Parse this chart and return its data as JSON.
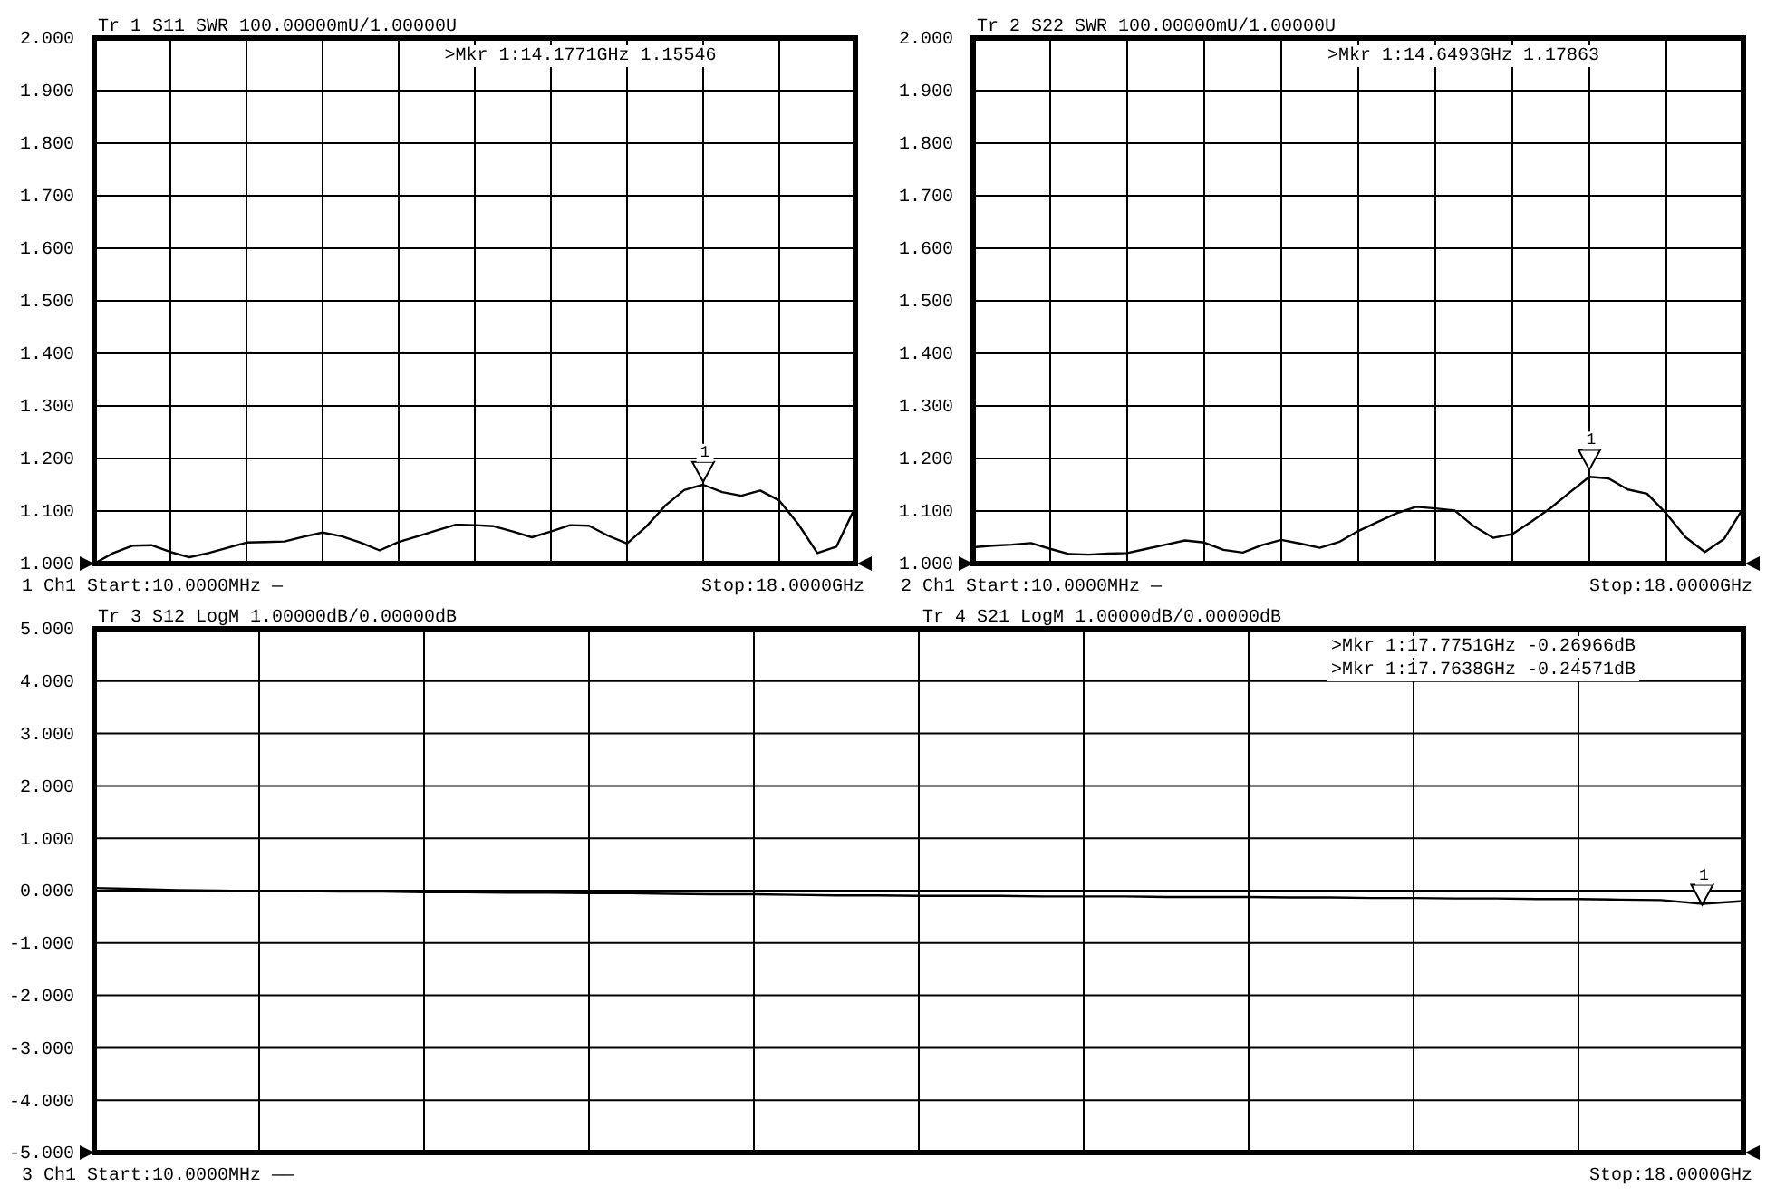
{
  "chart_data": [
    {
      "type": "line",
      "title": "Tr 1  S11 SWR 100.00000mU/1.00000U",
      "categories": [
        null,
        null,
        null,
        null,
        null,
        null,
        null,
        null,
        null,
        null,
        null,
        null,
        null,
        null,
        null,
        null,
        null,
        null,
        null,
        null,
        null,
        null,
        null,
        null,
        null,
        null,
        null,
        null,
        null,
        null,
        null,
        null,
        null,
        null,
        null,
        null,
        null,
        null,
        null,
        null,
        null
      ],
      "ylim": [
        1,
        2
      ],
      "yticks": [
        {
          "value": 1,
          "label": "1.000"
        },
        {
          "value": 1.1,
          "label": "1.100"
        },
        {
          "value": 1.2,
          "label": "1.200"
        },
        {
          "value": 1.3,
          "label": "1.300"
        },
        {
          "value": 1.4,
          "label": "1.400"
        },
        {
          "value": 1.5,
          "label": "1.500"
        },
        {
          "value": 1.6,
          "label": "1.600"
        },
        {
          "value": 1.7,
          "label": "1.700"
        },
        {
          "value": 1.8,
          "label": "1.800"
        },
        {
          "value": 1.9,
          "label": "1.900"
        },
        {
          "value": 2,
          "label": "2.000"
        }
      ],
      "grid": true,
      "series": [
        {
          "color": "#000000",
          "values": [
            1.0,
            1.02,
            1.034,
            1.035,
            1.022,
            1.012,
            1.02,
            1.03,
            1.04,
            1.041,
            1.042,
            1.051,
            1.059,
            1.052,
            1.04,
            1.025,
            1.041,
            1.052,
            1.063,
            1.074,
            1.073,
            1.071,
            1.061,
            1.05,
            1.061,
            1.073,
            1.072,
            1.053,
            1.038,
            1.07,
            1.11,
            1.14,
            1.15,
            1.136,
            1.129,
            1.139,
            1.12,
            1.075,
            1.02,
            1.032,
            1.108
          ]
        }
      ],
      "annotations": [
        ">Mkr 1:14.1771GHz 1.15546",
        {
          "text": "1",
          "y": 1.15546
        },
        "1  Ch1  Start:10.0000MHz —",
        "Stop:18.0000GHz"
      ]
    },
    {
      "type": "line",
      "title": "Tr 2  S22 SWR 100.00000mU/1.00000U",
      "categories": [
        null,
        null,
        null,
        null,
        null,
        null,
        null,
        null,
        null,
        null,
        null,
        null,
        null,
        null,
        null,
        null,
        null,
        null,
        null,
        null,
        null,
        null,
        null,
        null,
        null,
        null,
        null,
        null,
        null,
        null,
        null,
        null,
        null,
        null,
        null,
        null,
        null,
        null,
        null,
        null,
        null
      ],
      "ylim": [
        1,
        2
      ],
      "yticks": [
        {
          "value": 1,
          "label": "1.000"
        },
        {
          "value": 1.1,
          "label": "1.100"
        },
        {
          "value": 1.2,
          "label": "1.200"
        },
        {
          "value": 1.3,
          "label": "1.300"
        },
        {
          "value": 1.4,
          "label": "1.400"
        },
        {
          "value": 1.5,
          "label": "1.500"
        },
        {
          "value": 1.6,
          "label": "1.600"
        },
        {
          "value": 1.7,
          "label": "1.700"
        },
        {
          "value": 1.8,
          "label": "1.800"
        },
        {
          "value": 1.9,
          "label": "1.900"
        },
        {
          "value": 2,
          "label": "2.000"
        }
      ],
      "grid": true,
      "series": [
        {
          "color": "#000000",
          "values": [
            1.031,
            1.034,
            1.036,
            1.039,
            1.028,
            1.018,
            1.017,
            1.019,
            1.02,
            1.028,
            1.036,
            1.044,
            1.04,
            1.026,
            1.021,
            1.035,
            1.045,
            1.038,
            1.03,
            1.041,
            1.062,
            1.079,
            1.096,
            1.108,
            1.105,
            1.101,
            1.071,
            1.049,
            1.056,
            1.08,
            1.106,
            1.136,
            1.165,
            1.162,
            1.141,
            1.133,
            1.095,
            1.05,
            1.022,
            1.047,
            1.106
          ]
        }
      ],
      "annotations": [
        ">Mkr 1:14.6493GHz 1.17863",
        {
          "text": "1",
          "y": 1.17863
        },
        "2  Ch1  Start:10.0000MHz —",
        "Stop:18.0000GHz"
      ]
    },
    {
      "type": "line",
      "title": "Tr 3  S12 LogM 1.00000dB/0.00000dB",
      "subtitle": "Tr 4  S21 LogM 1.00000dB/0.00000dB",
      "categories": [
        null,
        null,
        null,
        null,
        null,
        null,
        null,
        null,
        null,
        null,
        null,
        null,
        null,
        null,
        null,
        null,
        null,
        null,
        null,
        null,
        null,
        null,
        null,
        null,
        null,
        null,
        null,
        null,
        null,
        null,
        null,
        null,
        null,
        null,
        null,
        null,
        null,
        null,
        null,
        null,
        null
      ],
      "ylim": [
        -5,
        5
      ],
      "yticks": [
        {
          "value": -5,
          "label": "-5.000"
        },
        {
          "value": -4,
          "label": "-4.000"
        },
        {
          "value": -3,
          "label": "-3.000"
        },
        {
          "value": -2,
          "label": "-2.000"
        },
        {
          "value": -1,
          "label": "-1.000"
        },
        {
          "value": 0,
          "label": "0.000"
        },
        {
          "value": 1,
          "label": "1.000"
        },
        {
          "value": 2,
          "label": "2.000"
        },
        {
          "value": 3,
          "label": "3.000"
        },
        {
          "value": 4,
          "label": "4.000"
        },
        {
          "value": 5,
          "label": "5.000"
        }
      ],
      "grid": true,
      "series": [
        {
          "color": "#000000",
          "values": [
            0.05,
            0.03,
            0.01,
            0.0,
            -0.01,
            -0.01,
            -0.02,
            -0.02,
            -0.03,
            -0.03,
            -0.04,
            -0.04,
            -0.05,
            -0.05,
            -0.06,
            -0.07,
            -0.07,
            -0.08,
            -0.09,
            -0.09,
            -0.1,
            -0.1,
            -0.1,
            -0.11,
            -0.11,
            -0.11,
            -0.12,
            -0.12,
            -0.12,
            -0.13,
            -0.13,
            -0.14,
            -0.14,
            -0.15,
            -0.15,
            -0.16,
            -0.16,
            -0.17,
            -0.18,
            -0.25,
            -0.2
          ]
        }
      ],
      "annotations": [
        ">Mkr 1:17.7751GHz -0.26966dB",
        ">Mkr 1:17.7638GHz -0.24571dB",
        {
          "text": "1",
          "y": -0.26966
        },
        "3  Ch1  Start:10.0000MHz ——",
        "Stop:18.0000GHz"
      ]
    }
  ]
}
